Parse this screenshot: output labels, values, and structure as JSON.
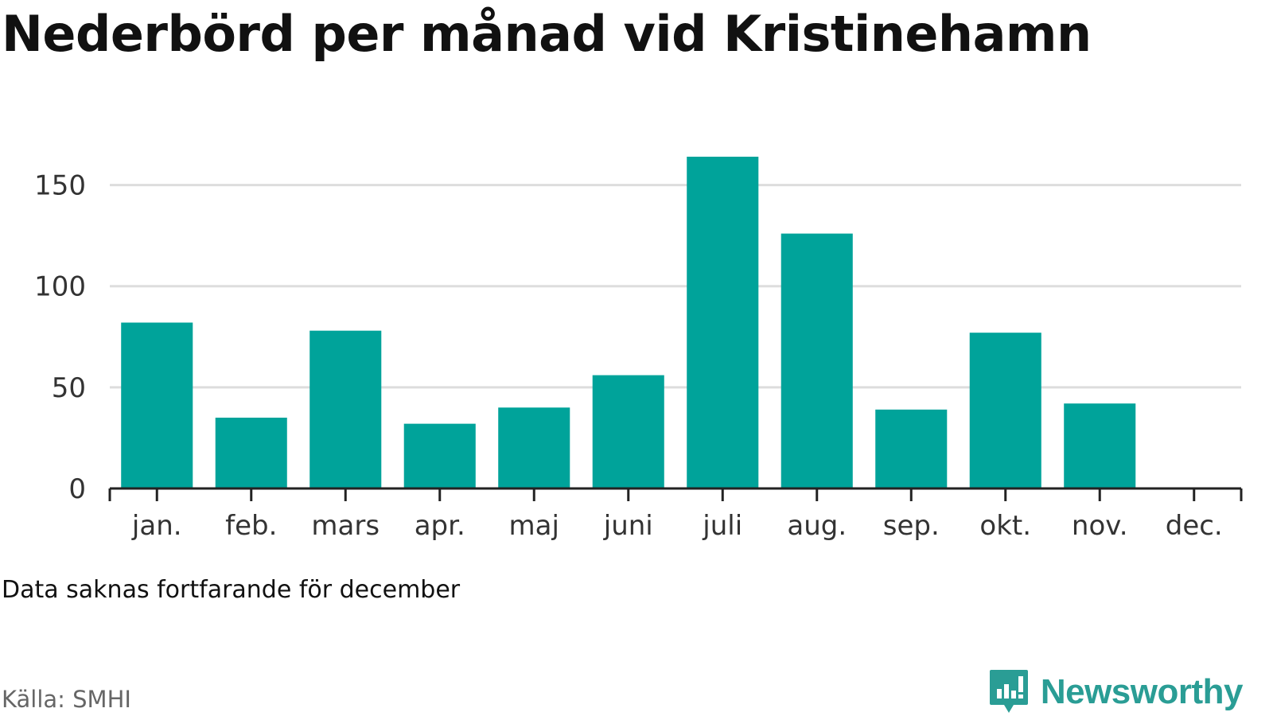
{
  "title": "Nederbörd per månad vid Kristinehamn",
  "note": "Data saknas fortfarande för december",
  "source": "Källa: SMHI",
  "brand": {
    "name": "Newsworthy",
    "icon": "newsworthy-logo-icon"
  },
  "colors": {
    "bar": "#00a39a",
    "grid": "#dddddd",
    "axis": "#222222",
    "brand": "#2a9d95"
  },
  "chart_data": {
    "type": "bar",
    "categories": [
      "jan.",
      "feb.",
      "mars",
      "apr.",
      "maj",
      "juni",
      "juli",
      "aug.",
      "sep.",
      "okt.",
      "nov.",
      "dec."
    ],
    "values": [
      82,
      35,
      78,
      32,
      40,
      56,
      164,
      126,
      39,
      77,
      42,
      null
    ],
    "yticks": [
      0,
      50,
      100,
      150
    ],
    "ylim": [
      0,
      175
    ],
    "grid": true
  }
}
